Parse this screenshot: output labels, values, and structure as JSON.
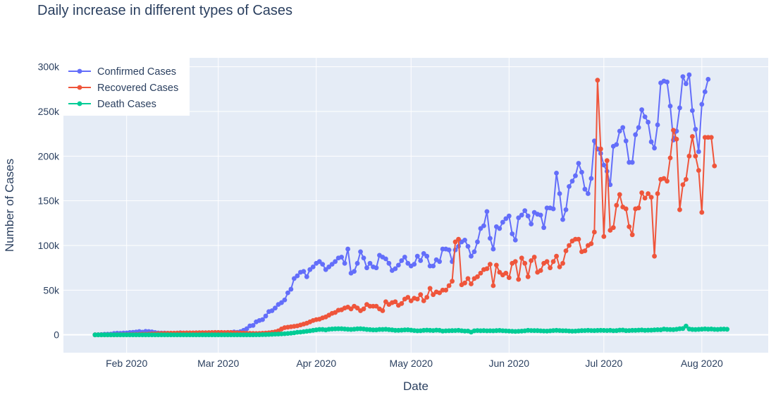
{
  "chart_data": {
    "type": "line",
    "title": "Daily increase in different types of Cases",
    "xlabel": "Date",
    "ylabel": "Number of Cases",
    "x_start": "2020-01-22",
    "xlim": [
      "2020-01-12",
      "2020-08-22"
    ],
    "ylim": [
      -20000,
      310000
    ],
    "xticks": [
      {
        "date": "2020-02-01",
        "label": "Feb 2020"
      },
      {
        "date": "2020-03-01",
        "label": "Mar 2020"
      },
      {
        "date": "2020-04-01",
        "label": "Apr 2020"
      },
      {
        "date": "2020-05-01",
        "label": "May 2020"
      },
      {
        "date": "2020-06-01",
        "label": "Jun 2020"
      },
      {
        "date": "2020-07-01",
        "label": "Jul 2020"
      },
      {
        "date": "2020-08-01",
        "label": "Aug 2020"
      }
    ],
    "yticks": [
      {
        "value": 0,
        "label": "0"
      },
      {
        "value": 50000,
        "label": "50k"
      },
      {
        "value": 100000,
        "label": "100k"
      },
      {
        "value": 150000,
        "label": "150k"
      },
      {
        "value": 200000,
        "label": "200k"
      },
      {
        "value": 250000,
        "label": "250k"
      },
      {
        "value": 300000,
        "label": "300k"
      }
    ],
    "grid": true,
    "legend_position": "top-left",
    "plot_bgcolor": "#e5ecf6",
    "series": [
      {
        "name": "Confirmed Cases",
        "color": "#636efa",
        "values": [
          0,
          100,
          300,
          600,
          700,
          800,
          1500,
          1800,
          1700,
          2000,
          2100,
          2600,
          2800,
          3200,
          3700,
          3000,
          3900,
          3700,
          3300,
          2600,
          2100,
          2000,
          2000,
          1800,
          1600,
          600,
          800,
          2300,
          600,
          1000,
          500,
          400,
          1000,
          700,
          800,
          1100,
          1400,
          1100,
          1200,
          1800,
          1900,
          2300,
          2500,
          2700,
          3200,
          2800,
          3600,
          5000,
          6800,
          10000,
          10500,
          14500,
          16000,
          17000,
          21000,
          26000,
          27000,
          30000,
          34000,
          36000,
          39000,
          47000,
          51000,
          63000,
          66000,
          70000,
          71000,
          65000,
          73000,
          76000,
          80000,
          82000,
          79000,
          73000,
          76000,
          79000,
          82000,
          86000,
          87000,
          80000,
          96000,
          69000,
          71000,
          80000,
          93000,
          86000,
          75000,
          80000,
          76000,
          75000,
          89000,
          87000,
          85000,
          80000,
          72000,
          74000,
          78000,
          83000,
          87000,
          80000,
          77000,
          79000,
          88000,
          83000,
          91000,
          88000,
          77000,
          77000,
          84000,
          82000,
          96000,
          96000,
          95000,
          82000,
          95000,
          99000,
          104000,
          106000,
          99000,
          88000,
          93000,
          104000,
          119000,
          122000,
          138000,
          108000,
          96000,
          121000,
          119000,
          126000,
          130000,
          133000,
          113000,
          106000,
          131000,
          134000,
          139000,
          133000,
          124000,
          137000,
          135000,
          134000,
          120000,
          142000,
          142000,
          141000,
          181000,
          158000,
          129000,
          140000,
          166000,
          172000,
          178000,
          192000,
          182000,
          163000,
          158000,
          175000,
          217000,
          208000,
          203000,
          190000,
          183000,
          168000,
          211000,
          213000,
          228000,
          232000,
          217000,
          193000,
          193000,
          224000,
          232000,
          252000,
          244000,
          238000,
          216000,
          209000,
          235000,
          282000,
          284000,
          283000,
          256000,
          218000,
          228000,
          254000,
          289000,
          281000,
          291000,
          251000,
          230000,
          205000,
          258000,
          272000,
          286000
        ]
      },
      {
        "name": "Recovered Cases",
        "color": "#ef553b",
        "values": [
          0,
          0,
          0,
          0,
          0,
          0,
          0,
          100,
          100,
          200,
          200,
          300,
          300,
          400,
          500,
          600,
          600,
          800,
          1000,
          1100,
          1400,
          1600,
          1700,
          1800,
          1900,
          1900,
          2000,
          2100,
          2100,
          2200,
          2200,
          2200,
          2300,
          2400,
          2400,
          2400,
          2500,
          2600,
          2700,
          2700,
          2700,
          2600,
          2700,
          2600,
          2400,
          2200,
          2100,
          2000,
          1800,
          1700,
          1600,
          1500,
          1600,
          1800,
          2000,
          2300,
          2800,
          3400,
          4500,
          6500,
          8000,
          8500,
          9000,
          9500,
          10000,
          11000,
          12000,
          13000,
          14500,
          16000,
          17000,
          17500,
          19000,
          20000,
          22000,
          24000,
          25000,
          27500,
          28000,
          30000,
          31000,
          29000,
          32000,
          30000,
          27000,
          29000,
          34000,
          32000,
          32000,
          32000,
          29000,
          27000,
          37000,
          34000,
          36000,
          37000,
          33000,
          35000,
          40000,
          42000,
          38000,
          41000,
          40000,
          45000,
          38000,
          42000,
          52000,
          45000,
          48000,
          47000,
          50000,
          50000,
          55000,
          60000,
          104000,
          107000,
          56000,
          58000,
          63000,
          57000,
          63000,
          65000,
          69000,
          73000,
          74000,
          79000,
          55000,
          78000,
          70000,
          67000,
          69000,
          64000,
          80000,
          82000,
          62000,
          86000,
          80000,
          65000,
          83000,
          87000,
          70000,
          72000,
          80000,
          82000,
          75000,
          82000,
          88000,
          76000,
          80000,
          94000,
          100000,
          105000,
          107000,
          107000,
          93000,
          94000,
          100000,
          102000,
          115000,
          285000,
          208000,
          110000,
          195000,
          117000,
          120000,
          145000,
          157000,
          143000,
          141000,
          121000,
          112000,
          141000,
          142000,
          159000,
          153000,
          158000,
          154000,
          88000,
          158000,
          174000,
          175000,
          172000,
          198000,
          229000,
          219000,
          140000,
          168000,
          174000,
          200000,
          222000,
          200000,
          184000,
          137000,
          221000,
          221000,
          221000,
          189000
        ]
      },
      {
        "name": "Death Cases",
        "color": "#00cc96",
        "values": [
          0,
          0,
          0,
          0,
          0,
          0,
          0,
          0,
          0,
          0,
          0,
          0,
          0,
          0,
          0,
          0,
          0,
          0,
          0,
          0,
          0,
          0,
          0,
          0,
          0,
          0,
          0,
          0,
          0,
          0,
          0,
          0,
          0,
          0,
          0,
          0,
          0,
          0,
          0,
          0,
          0,
          0,
          0,
          0,
          0,
          0,
          0,
          0,
          0,
          0,
          0,
          100,
          100,
          200,
          300,
          400,
          500,
          700,
          800,
          1000,
          1200,
          1500,
          1800,
          2200,
          2800,
          3000,
          3500,
          4000,
          4500,
          5000,
          5500,
          6000,
          6000,
          5500,
          6200,
          6500,
          6700,
          6800,
          6800,
          6500,
          6200,
          6000,
          6300,
          6700,
          6800,
          6500,
          6000,
          5800,
          5500,
          5500,
          6000,
          6000,
          6200,
          5800,
          5500,
          5000,
          5000,
          5200,
          5500,
          5600,
          5200,
          4800,
          4500,
          4600,
          5000,
          5200,
          5000,
          4800,
          5200,
          5000,
          4200,
          4500,
          4600,
          4700,
          4800,
          5000,
          4600,
          4200,
          4300,
          3000,
          4500,
          4800,
          4600,
          4700,
          4500,
          4600,
          4500,
          4700,
          4900,
          4600,
          4400,
          4200,
          4000,
          3800,
          4000,
          4200,
          4500,
          5000,
          4800,
          4700,
          4700,
          4500,
          4300,
          4200,
          4500,
          4800,
          5000,
          4800,
          4600,
          4600,
          4300,
          4100,
          4200,
          4500,
          4700,
          4800,
          5000,
          4800,
          4700,
          4900,
          5000,
          4900,
          4800,
          5000,
          4600,
          4700,
          5200,
          5300,
          4700,
          4800,
          5000,
          5000,
          5200,
          5400,
          5000,
          5200,
          5200,
          5500,
          5700,
          5600,
          6400,
          6000,
          5900,
          5800,
          6200,
          6800,
          7000,
          9800,
          6500,
          6000,
          5900,
          6100,
          6300,
          6600,
          6300,
          6500,
          6100,
          6000,
          6300,
          6400,
          6200
        ]
      }
    ]
  }
}
